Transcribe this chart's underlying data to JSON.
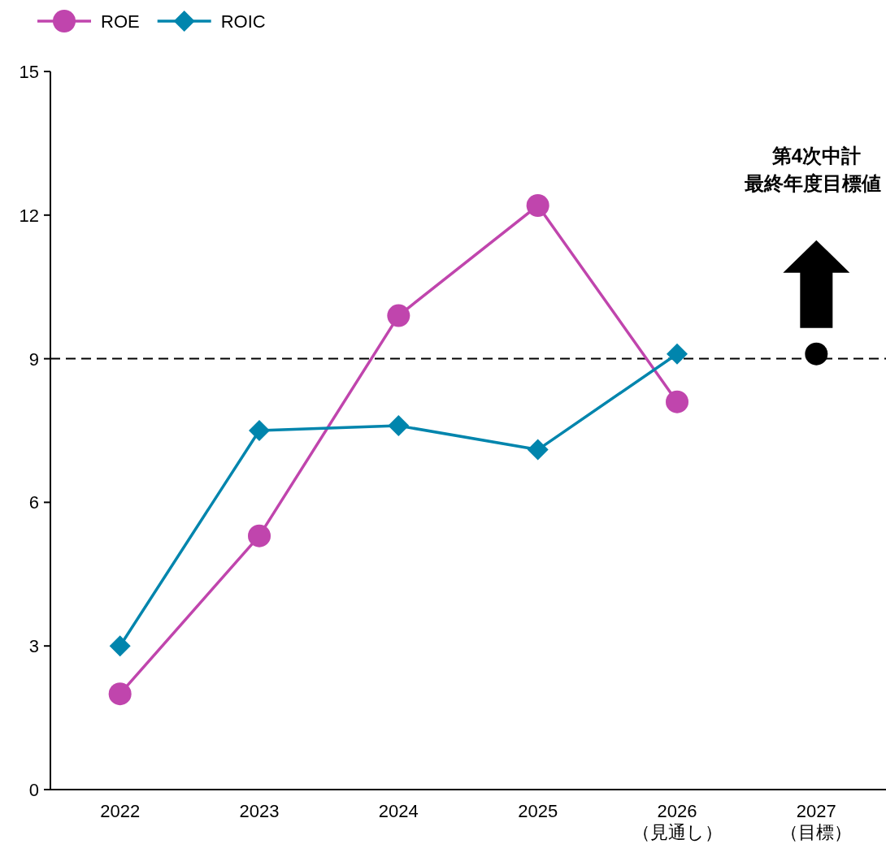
{
  "chart_data": {
    "type": "line",
    "categories": [
      "2022",
      "2023",
      "2024",
      "2025",
      "2026\n（見通し）",
      "2027\n（目標）"
    ],
    "ylim": [
      0,
      15
    ],
    "yticks": [
      0,
      3,
      6,
      9,
      12,
      15
    ],
    "legend": "top left",
    "grid": false,
    "series": [
      {
        "name": "ROE",
        "color": "#c045ad",
        "marker": "circle",
        "values": [
          2.0,
          5.3,
          9.9,
          12.2,
          8.1,
          null
        ]
      },
      {
        "name": "ROIC",
        "color": "#0085ad",
        "marker": "diamond",
        "values": [
          3.0,
          7.5,
          7.6,
          7.1,
          9.1,
          null
        ]
      },
      {
        "type": "scatter",
        "color": "#000000",
        "marker": "circle",
        "values": [
          null,
          null,
          null,
          null,
          null,
          9.1
        ]
      }
    ],
    "ref_lines": [
      {
        "axis": "y",
        "value": 9,
        "color": "#000000",
        "line_style": "dashed"
      }
    ],
    "annotations": [
      "第4次中計",
      "最終年度目標値"
    ]
  }
}
